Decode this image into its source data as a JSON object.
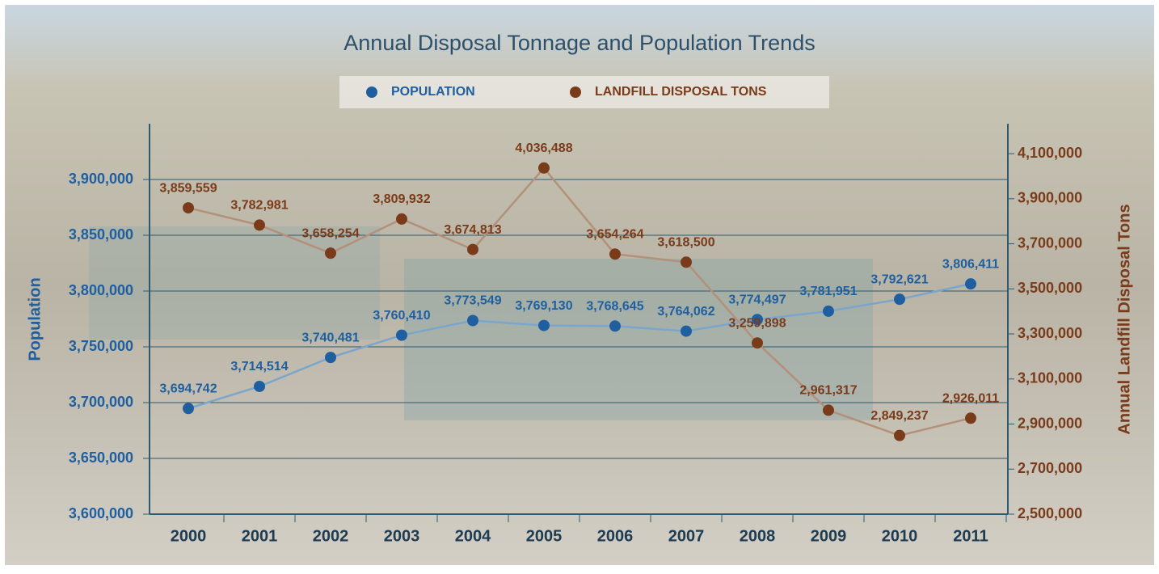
{
  "chart_data": {
    "type": "line",
    "title": "Annual Disposal Tonnage and Population Trends",
    "categories": [
      "2000",
      "2001",
      "2002",
      "2003",
      "2004",
      "2005",
      "2006",
      "2007",
      "2008",
      "2009",
      "2010",
      "2011"
    ],
    "series": [
      {
        "name": "POPULATION",
        "color": "#1f5fa0",
        "line_color": "#7aa6cc",
        "values": [
          3694742,
          3714514,
          3740481,
          3760410,
          3773549,
          3769130,
          3768645,
          3764062,
          3774497,
          3781951,
          3792621,
          3806411
        ],
        "value_labels": [
          "3,694,742",
          "3,714,514",
          "3,740,481",
          "3,760,410",
          "3,773,549",
          "3,769,130",
          "3,768,645",
          "3,764,062",
          "3,774,497",
          "3,781,951",
          "3,792,621",
          "3,806,411"
        ]
      },
      {
        "name": "LANDFILL DISPOSAL TONS",
        "color": "#7a3b1a",
        "line_color": "#b3907a",
        "axis": "y2",
        "values": [
          3859559,
          3782981,
          3658254,
          3809932,
          3674813,
          4036488,
          3654264,
          3618500,
          3259898,
          2961317,
          2849237,
          2926011
        ],
        "value_labels": [
          "3,859,559",
          "3,782,981",
          "3,658,254",
          "3,809,932",
          "3,674,813",
          "4,036,488",
          "3,654,264",
          "3,618,500",
          "3,259,898",
          "2,961,317",
          "2,849,237",
          "2,926,011"
        ]
      }
    ],
    "ylabel": "Population",
    "y2label": "Annual Landfill Disposal Tons",
    "ylim": [
      3600000,
      3950000
    ],
    "yticks": [
      {
        "value": 3600000,
        "label": "3,600,000"
      },
      {
        "value": 3650000,
        "label": "3,650,000"
      },
      {
        "value": 3700000,
        "label": "3,700,000"
      },
      {
        "value": 3750000,
        "label": "3,750,000"
      },
      {
        "value": 3800000,
        "label": "3,800,000"
      },
      {
        "value": 3850000,
        "label": "3,850,000"
      },
      {
        "value": 3900000,
        "label": "3,900,000"
      }
    ],
    "y2lim": [
      2500000,
      4233000
    ],
    "y2ticks": [
      {
        "value": 2500000,
        "label": "2,500,000"
      },
      {
        "value": 2700000,
        "label": "2,700,000"
      },
      {
        "value": 2900000,
        "label": "2,900,000"
      },
      {
        "value": 3100000,
        "label": "3,100,000"
      },
      {
        "value": 3300000,
        "label": "3,300,000"
      },
      {
        "value": 3500000,
        "label": "3,500,000"
      },
      {
        "value": 3700000,
        "label": "3,700,000"
      },
      {
        "value": 3900000,
        "label": "3,900,000"
      },
      {
        "value": 4100000,
        "label": "4,100,000"
      }
    ],
    "grid": true,
    "legend": "top"
  }
}
